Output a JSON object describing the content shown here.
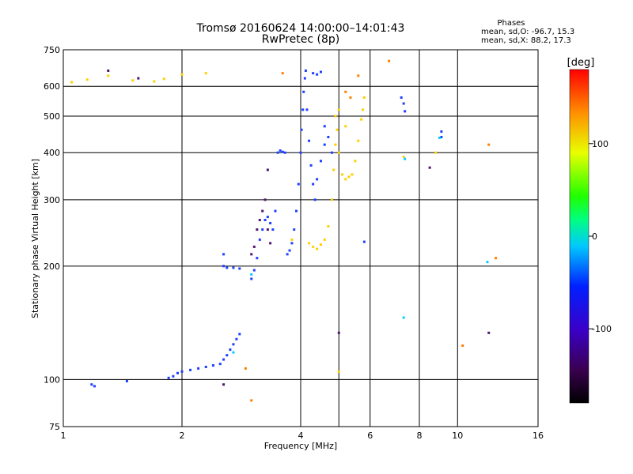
{
  "chart_data": {
    "type": "scatter",
    "title": "Tromsø 20160624 14:00:00–14:01:43",
    "subtitle": "RwPretec (8p)",
    "xlabel": "Frequency [MHz]",
    "ylabel": "Stationary phase Virtual Height [km]",
    "x_scale": "log",
    "y_scale": "log",
    "xlim": [
      1,
      16
    ],
    "ylim": [
      75,
      750
    ],
    "x_ticks": [
      1,
      2,
      4,
      6,
      8,
      10,
      16
    ],
    "x_tick_labels": [
      "1",
      "2",
      "4",
      "6",
      "8",
      "10",
      "16"
    ],
    "x_grid_extra": [
      5
    ],
    "y_ticks": [
      75,
      100,
      200,
      300,
      400,
      500,
      600,
      750
    ],
    "y_tick_labels": [
      "75",
      "100",
      "200",
      "300",
      "400",
      "500",
      "600",
      "750"
    ],
    "grid": true,
    "legend": {
      "title": "Phases",
      "lines": [
        "mean, sd,O: -96.7, 15.3",
        "mean, sd,X:  88.2, 17.3"
      ],
      "placement": "top-right"
    },
    "colorbar": {
      "label": "[deg]",
      "range": [
        -180,
        180
      ],
      "tick_values": [
        100,
        0,
        -100
      ],
      "tick_labels": [
        "100",
        "0",
        "-100"
      ],
      "colormap": "rainbow (black → purple → blue → cyan → green → yellow → red)"
    },
    "series": [
      {
        "color": "#1f3fff",
        "points": [
          [
            1.18,
            97
          ],
          [
            1.2,
            96
          ],
          [
            1.45,
            99
          ],
          [
            1.85,
            101
          ],
          [
            1.9,
            102
          ],
          [
            1.95,
            104
          ],
          [
            2.0,
            105
          ],
          [
            2.1,
            106
          ],
          [
            2.2,
            107
          ],
          [
            2.3,
            108
          ],
          [
            2.4,
            109
          ],
          [
            2.5,
            110
          ],
          [
            2.55,
            113
          ],
          [
            2.6,
            116
          ],
          [
            2.65,
            120
          ],
          [
            2.7,
            124
          ],
          [
            2.75,
            128
          ],
          [
            2.8,
            132
          ],
          [
            2.55,
            200
          ],
          [
            2.6,
            198
          ],
          [
            2.7,
            198
          ],
          [
            2.8,
            197
          ],
          [
            2.55,
            215
          ],
          [
            3.0,
            185
          ],
          [
            3.05,
            195
          ],
          [
            3.1,
            210
          ],
          [
            3.15,
            235
          ],
          [
            3.2,
            250
          ],
          [
            3.25,
            265
          ],
          [
            3.3,
            270
          ],
          [
            3.35,
            260
          ],
          [
            3.4,
            250
          ],
          [
            3.45,
            280
          ],
          [
            3.5,
            400
          ],
          [
            3.55,
            405
          ],
          [
            3.6,
            402
          ],
          [
            3.65,
            400
          ],
          [
            3.7,
            215
          ],
          [
            3.75,
            220
          ],
          [
            3.8,
            230
          ],
          [
            3.85,
            250
          ],
          [
            3.9,
            280
          ],
          [
            3.95,
            330
          ],
          [
            4.0,
            400
          ],
          [
            4.02,
            460
          ],
          [
            4.05,
            520
          ],
          [
            4.07,
            580
          ],
          [
            4.1,
            630
          ],
          [
            4.12,
            660
          ],
          [
            4.15,
            520
          ],
          [
            4.2,
            430
          ],
          [
            4.25,
            370
          ],
          [
            4.3,
            330
          ],
          [
            4.35,
            300
          ],
          [
            4.4,
            340
          ],
          [
            4.5,
            380
          ],
          [
            4.6,
            420
          ],
          [
            4.6,
            470
          ],
          [
            4.7,
            440
          ],
          [
            4.8,
            400
          ],
          [
            4.3,
            650
          ],
          [
            4.4,
            645
          ],
          [
            4.5,
            655
          ],
          [
            7.2,
            560
          ],
          [
            7.3,
            540
          ],
          [
            7.35,
            515
          ],
          [
            9.1,
            440
          ],
          [
            9.1,
            455
          ],
          [
            5.8,
            232
          ]
        ]
      },
      {
        "color": "#ffd000",
        "points": [
          [
            1.05,
            615
          ],
          [
            1.15,
            625
          ],
          [
            1.3,
            640
          ],
          [
            1.5,
            622
          ],
          [
            1.7,
            618
          ],
          [
            1.8,
            628
          ],
          [
            2.0,
            645
          ],
          [
            2.3,
            650
          ],
          [
            4.2,
            230
          ],
          [
            4.3,
            225
          ],
          [
            4.4,
            222
          ],
          [
            4.5,
            228
          ],
          [
            4.6,
            235
          ],
          [
            4.7,
            255
          ],
          [
            4.8,
            300
          ],
          [
            4.85,
            360
          ],
          [
            4.9,
            420
          ],
          [
            4.95,
            460
          ],
          [
            5.0,
            400
          ],
          [
            5.1,
            350
          ],
          [
            5.2,
            340
          ],
          [
            5.3,
            345
          ],
          [
            5.4,
            350
          ],
          [
            5.5,
            380
          ],
          [
            5.6,
            430
          ],
          [
            5.7,
            490
          ],
          [
            5.75,
            520
          ],
          [
            5.8,
            560
          ],
          [
            4.9,
            500
          ],
          [
            5.0,
            520
          ],
          [
            3.8,
            235
          ],
          [
            5.0,
            105
          ],
          [
            5.2,
            470
          ],
          [
            7.3,
            390
          ],
          [
            8.8,
            400
          ]
        ]
      },
      {
        "color": "#50146e",
        "points": [
          [
            3.0,
            215
          ],
          [
            3.05,
            225
          ],
          [
            3.1,
            250
          ],
          [
            3.15,
            265
          ],
          [
            3.2,
            280
          ],
          [
            3.25,
            300
          ],
          [
            3.3,
            360
          ],
          [
            2.55,
            97
          ],
          [
            3.3,
            250
          ],
          [
            3.35,
            230
          ],
          [
            1.55,
            630
          ],
          [
            5.0,
            133
          ],
          [
            12.0,
            133
          ],
          [
            8.5,
            365
          ],
          [
            1.3,
            660
          ]
        ]
      },
      {
        "color": "#ff7f00",
        "points": [
          [
            6.7,
            700
          ],
          [
            5.2,
            580
          ],
          [
            5.35,
            560
          ],
          [
            2.9,
            107
          ],
          [
            3.6,
            650
          ],
          [
            10.3,
            123
          ],
          [
            12.5,
            210
          ],
          [
            12.0,
            420
          ],
          [
            5.6,
            640
          ],
          [
            3.0,
            88
          ]
        ]
      },
      {
        "color": "#00d0ff",
        "points": [
          [
            2.7,
            118
          ],
          [
            3.0,
            190
          ],
          [
            7.3,
            146
          ],
          [
            11.9,
            205
          ],
          [
            7.35,
            385
          ],
          [
            9.0,
            438
          ]
        ]
      }
    ]
  }
}
